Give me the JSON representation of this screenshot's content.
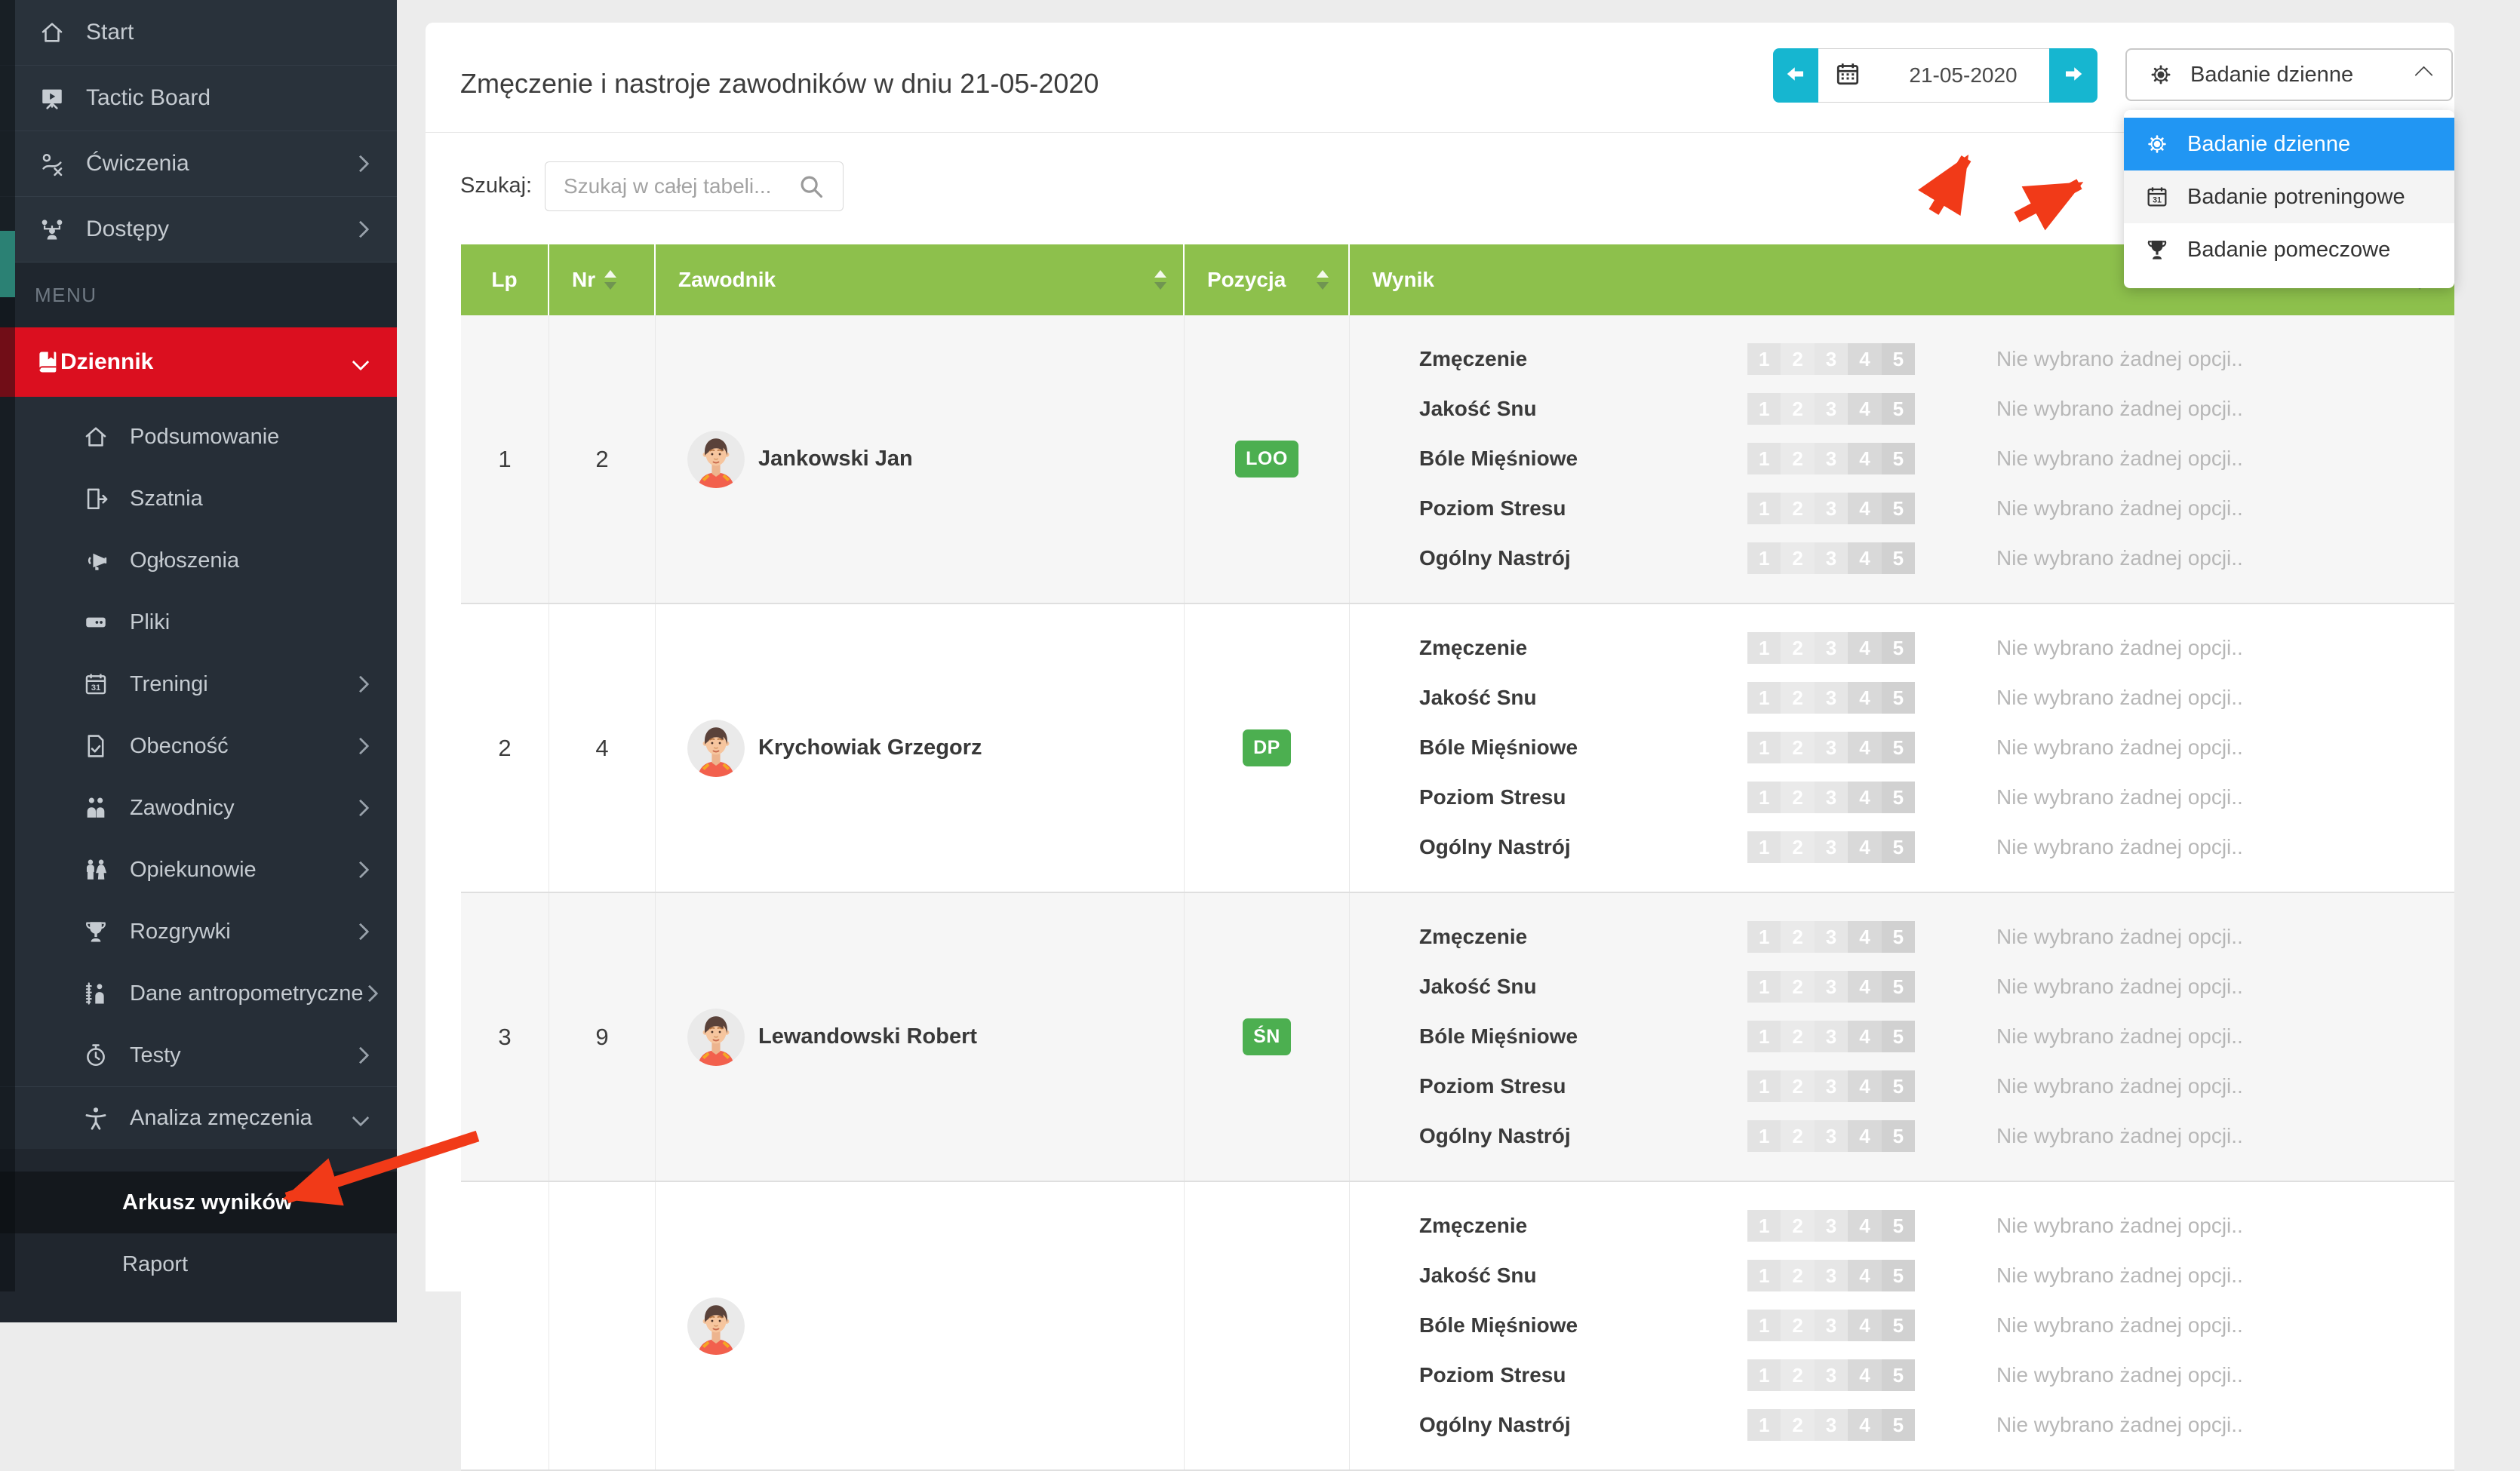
{
  "sidebar": {
    "menu_label": "MENU",
    "top_items": [
      {
        "label": "Start",
        "icon": "home-icon"
      },
      {
        "label": "Tactic Board",
        "icon": "tactic-board-icon"
      },
      {
        "label": "Ćwiczenia",
        "icon": "exercises-icon",
        "chevron": "right"
      },
      {
        "label": "Dostępy",
        "icon": "access-icon",
        "chevron": "right"
      }
    ],
    "active_parent": {
      "label": "Dziennik",
      "icon": "journal-icon",
      "chevron": "down"
    },
    "journal_submenu": [
      {
        "label": "Podsumowanie",
        "icon": "summary-home-icon"
      },
      {
        "label": "Szatnia",
        "icon": "locker-room-icon"
      },
      {
        "label": "Ogłoszenia",
        "icon": "announcements-icon"
      },
      {
        "label": "Pliki",
        "icon": "files-icon"
      },
      {
        "label": "Treningi",
        "icon": "trainings-icon",
        "chevron": "right"
      },
      {
        "label": "Obecność",
        "icon": "attendance-icon",
        "chevron": "right"
      },
      {
        "label": "Zawodnicy",
        "icon": "players-icon",
        "chevron": "right"
      },
      {
        "label": "Opiekunowie",
        "icon": "guardians-icon",
        "chevron": "right"
      },
      {
        "label": "Rozgrywki",
        "icon": "competitions-icon",
        "chevron": "right"
      },
      {
        "label": "Dane antropometryczne",
        "icon": "anthropometric-icon",
        "chevron": "right"
      },
      {
        "label": "Testy",
        "icon": "tests-icon",
        "chevron": "right"
      },
      {
        "label": "Analiza zmęczenia",
        "icon": "fatigue-analysis-icon",
        "chevron": "down",
        "expanded": true
      }
    ],
    "fatigue_submenu": [
      {
        "label": "Arkusz wyników",
        "active": true
      },
      {
        "label": "Raport",
        "active": false
      }
    ]
  },
  "header": {
    "title": "Zmęczenie i nastroje zawodników w dniu 21-05-2020",
    "date": "21-05-2020"
  },
  "survey_select": {
    "value": "Badanie dzienne",
    "options": [
      {
        "label": "Badanie dzienne",
        "icon": "sun-icon",
        "selected": true
      },
      {
        "label": "Badanie potreningowe",
        "icon": "calendar-icon",
        "selected": false
      },
      {
        "label": "Badanie pomeczowe",
        "icon": "trophy-icon",
        "selected": false
      }
    ]
  },
  "search": {
    "label": "Szukaj:",
    "placeholder": "Szukaj w całej tabeli..."
  },
  "table": {
    "columns": [
      "Lp",
      "Nr",
      "Zawodnik",
      "Pozycja",
      "Wynik"
    ],
    "sortable": [
      false,
      true,
      true,
      true,
      true
    ],
    "metrics": [
      "Zmęczenie",
      "Jakość Snu",
      "Bóle Mięśniowe",
      "Poziom Stresu",
      "Ogólny Nastrój"
    ],
    "scale": [
      "1",
      "2",
      "3",
      "4",
      "5"
    ],
    "no_option_text": "Nie wybrano żadnej opcji..",
    "rows": [
      {
        "lp": "1",
        "nr": "2",
        "name": "Jankowski Jan",
        "position": "LOO"
      },
      {
        "lp": "2",
        "nr": "4",
        "name": "Krychowiak Grzegorz",
        "position": "DP"
      },
      {
        "lp": "3",
        "nr": "9",
        "name": "Lewandowski Robert",
        "position": "ŚN"
      },
      {
        "lp": "",
        "nr": "",
        "name": "",
        "position": ""
      }
    ]
  },
  "colors": {
    "accent_red": "#db0f1f",
    "annotation_red": "#f13a18",
    "header_green": "#8dc04c",
    "badge_green": "#4caf50",
    "cyan": "#16b6d0",
    "selected_blue": "#2196f3",
    "scrollbar_teal": "#2b8174",
    "scale_segments": [
      "#e3e3e3",
      "#eaeaea",
      "#e6e6e6",
      "#d9d9d9",
      "#d1d1d1"
    ]
  }
}
